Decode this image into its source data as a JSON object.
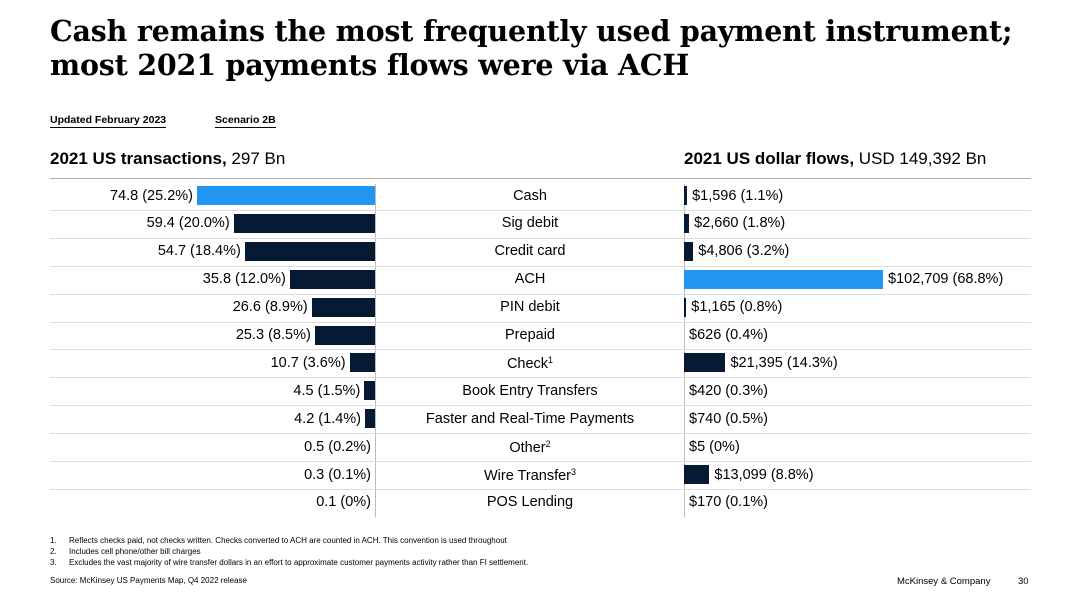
{
  "title_line1": "Cash remains the most frequently used payment instrument;",
  "title_line2": "most 2021 payments flows were via ACH",
  "tags": {
    "updated": "Updated February 2023",
    "scenario": "Scenario 2B"
  },
  "colors": {
    "highlight": "#2196f3",
    "bar": "#061b33"
  },
  "chart_data": [
    {
      "type": "bar",
      "orientation": "horizontal",
      "direction": "right-to-left",
      "title_bold": "2021 US transactions,",
      "title_rest": " 297 Bn",
      "categories": [
        "Cash",
        "Sig debit",
        "Credit card",
        "ACH",
        "PIN debit",
        "Prepaid",
        "Check",
        "Book Entry Transfers",
        "Faster and Real-Time Payments",
        "Other",
        "Wire Transfer",
        "POS Lending"
      ],
      "values": [
        74.8,
        59.4,
        54.7,
        35.8,
        26.6,
        25.3,
        10.7,
        4.5,
        4.2,
        0.5,
        0.3,
        0.1
      ],
      "labels": [
        "74.8 (25.2%)",
        "59.4 (20.0%)",
        "54.7 (18.4%)",
        "35.8 (12.0%)",
        "26.6 (8.9%)",
        "25.3 (8.5%)",
        "10.7 (3.6%)",
        "4.5 (1.5%)",
        "4.2 (1.4%)",
        "0.5 (0.2%)",
        "0.3 (0.1%)",
        "0.1 (0%)"
      ],
      "highlight_index": 0
    },
    {
      "type": "bar",
      "orientation": "horizontal",
      "direction": "left-to-right",
      "title_bold": "2021 US dollar flows,",
      "title_rest": " USD 149,392 Bn",
      "categories": [
        "Cash",
        "Sig debit",
        "Credit card",
        "ACH",
        "PIN debit",
        "Prepaid",
        "Check",
        "Book Entry Transfers",
        "Faster and Real-Time Payments",
        "Other",
        "Wire Transfer",
        "POS Lending"
      ],
      "values": [
        1596,
        2660,
        4806,
        102709,
        1165,
        626,
        21395,
        420,
        740,
        5,
        13099,
        170
      ],
      "labels": [
        "$1,596 (1.1%)",
        "$2,660 (1.8%)",
        "$4,806 (3.2%)",
        "$102,709 (68.8%)",
        "$1,165 (0.8%)",
        "$626 (0.4%)",
        "$21,395 (14.3%)",
        "$420 (0.3%)",
        "$740 (0.5%)",
        "$5 (0%)",
        "$13,099 (8.8%)",
        "$170 (0.1%)"
      ],
      "highlight_index": 3
    }
  ],
  "category_labels": [
    {
      "text": "Cash",
      "sup": ""
    },
    {
      "text": "Sig debit",
      "sup": ""
    },
    {
      "text": "Credit card",
      "sup": ""
    },
    {
      "text": "ACH",
      "sup": ""
    },
    {
      "text": "PIN debit",
      "sup": ""
    },
    {
      "text": "Prepaid",
      "sup": ""
    },
    {
      "text": "Check",
      "sup": "1"
    },
    {
      "text": "Book Entry Transfers",
      "sup": ""
    },
    {
      "text": "Faster and Real-Time Payments",
      "sup": ""
    },
    {
      "text": "Other",
      "sup": "2"
    },
    {
      "text": "Wire Transfer",
      "sup": "3"
    },
    {
      "text": "POS Lending",
      "sup": ""
    }
  ],
  "footnotes": [
    {
      "num": "1.",
      "text": "Reflects checks paid, not checks written. Checks converted to ACH are counted in ACH. This convention is used throughout"
    },
    {
      "num": "2.",
      "text": "Includes cell phone/other bill charges"
    },
    {
      "num": "3.",
      "text": "Excludes the vast majority of wire transfer dollars in an effort to approximate customer payments activity rather than FI settlement."
    }
  ],
  "source": "Source: McKinsey US Payments Map, Q4 2022 release",
  "brand": "McKinsey & Company",
  "page_number": "30"
}
